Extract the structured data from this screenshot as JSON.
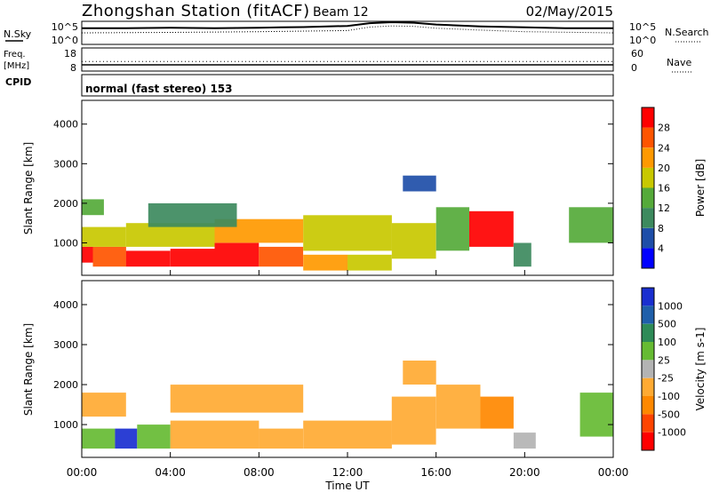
{
  "header": {
    "title": "Zhongshan Station (fitACF)",
    "beam": "Beam 12",
    "date": "02/May/2015"
  },
  "labels": {
    "nsky": "N.Sky",
    "nsearch": "N.Search",
    "freq": "Freq.",
    "mhz": "[MHz]",
    "nave": "Nave",
    "cpid": "CPID",
    "cpid_value": "normal (fast stereo) 153",
    "slant_range": "Slant Range [km]",
    "time_axis": "Time UT",
    "noise_ticks_left": [
      "10^5",
      "10^0"
    ],
    "noise_ticks_right": [
      "10^5",
      "10^0"
    ],
    "freq_ticks_left": [
      "18",
      "8"
    ],
    "nave_ticks_right": [
      "60",
      "0"
    ]
  },
  "colors": {
    "power_scale": [
      "#0000ff",
      "#1e4ea8",
      "#3d8a5e",
      "#55aa3a",
      "#c8c800",
      "#ff9900",
      "#ff5500",
      "#ff0000"
    ],
    "velocity_scale": [
      "#ff0000",
      "#ff4400",
      "#ff8800",
      "#ffaa33",
      "#b3b3b3",
      "#66bb33",
      "#2e8b57",
      "#1f5faa",
      "#1a2fd0"
    ]
  },
  "chart_data": [
    {
      "type": "heatmap",
      "name": "power",
      "xlabel": "Time UT",
      "ylabel": "Slant Range [km]",
      "xlim": [
        0,
        24
      ],
      "ylim": [
        180,
        4600
      ],
      "x_ticks": [
        "00:00",
        "04:00",
        "08:00",
        "12:00",
        "16:00",
        "20:00",
        "00:00"
      ],
      "y_ticks": [
        1000,
        2000,
        3000,
        4000
      ],
      "colorbar": {
        "label": "Power [dB]",
        "ticks": [
          "28",
          "24",
          "20",
          "16",
          "12",
          "8",
          "4"
        ],
        "range": [
          0,
          30
        ]
      },
      "cells": [
        [
          0,
          0.5,
          500,
          900,
          28
        ],
        [
          0.5,
          2,
          400,
          900,
          26
        ],
        [
          2,
          4,
          400,
          800,
          28
        ],
        [
          4,
          6,
          400,
          850,
          28
        ],
        [
          6,
          8,
          400,
          1000,
          27
        ],
        [
          8,
          10,
          400,
          900,
          26
        ],
        [
          10,
          12,
          300,
          700,
          20
        ],
        [
          12,
          14,
          300,
          700,
          16
        ],
        [
          0,
          2,
          900,
          1400,
          16
        ],
        [
          2,
          6,
          900,
          1500,
          18
        ],
        [
          6,
          10,
          1000,
          1600,
          20
        ],
        [
          10,
          14,
          800,
          1700,
          18
        ],
        [
          14,
          16,
          600,
          1500,
          16
        ],
        [
          16,
          17.5,
          800,
          1900,
          12
        ],
        [
          17.5,
          19.5,
          900,
          1800,
          28
        ],
        [
          19.5,
          20.3,
          400,
          1000,
          8
        ],
        [
          22,
          24,
          1000,
          1900,
          14
        ],
        [
          0,
          1,
          1700,
          2100,
          12
        ],
        [
          3,
          7,
          1400,
          2000,
          8
        ],
        [
          14.5,
          16,
          2300,
          2700,
          6
        ]
      ]
    },
    {
      "type": "heatmap",
      "name": "velocity",
      "xlabel": "Time UT",
      "ylabel": "Slant Range [km]",
      "xlim": [
        0,
        24
      ],
      "ylim": [
        180,
        4600
      ],
      "x_ticks": [
        "00:00",
        "04:00",
        "08:00",
        "12:00",
        "16:00",
        "20:00",
        "00:00"
      ],
      "y_ticks": [
        1000,
        2000,
        3000,
        4000
      ],
      "colorbar": {
        "label": "Velocity [m s-1]",
        "ticks": [
          "1000",
          "500",
          "100",
          "25",
          "-25",
          "-100",
          "-500",
          "-1000"
        ],
        "range": [
          -1000,
          1000
        ]
      },
      "cells": [
        [
          0,
          1.5,
          400,
          900,
          300
        ],
        [
          1.5,
          2.5,
          400,
          900,
          800
        ],
        [
          2.5,
          4,
          400,
          1000,
          300
        ],
        [
          4,
          8,
          400,
          1100,
          -150
        ],
        [
          8,
          10,
          400,
          900,
          -300
        ],
        [
          10,
          14,
          400,
          1100,
          -300
        ],
        [
          14,
          16,
          500,
          1700,
          -250
        ],
        [
          16,
          18,
          900,
          2000,
          -300
        ],
        [
          18,
          19.5,
          900,
          1700,
          -500
        ],
        [
          19.5,
          20.5,
          400,
          800,
          -80
        ],
        [
          22.5,
          24,
          700,
          1800,
          250
        ],
        [
          0,
          2,
          1200,
          1800,
          -150
        ],
        [
          4,
          10,
          1300,
          2000,
          -250
        ],
        [
          14.5,
          16,
          2000,
          2600,
          -200
        ]
      ]
    },
    {
      "type": "line",
      "name": "noise_sky",
      "x": [
        0,
        2,
        4,
        6,
        8,
        9,
        10,
        12,
        13,
        14,
        15,
        16,
        18,
        20,
        22,
        24
      ],
      "y": [
        0.7,
        0.7,
        0.72,
        0.7,
        0.72,
        0.74,
        0.75,
        0.8,
        0.92,
        0.96,
        0.94,
        0.86,
        0.78,
        0.74,
        0.7,
        0.7
      ]
    },
    {
      "type": "line",
      "name": "noise_search",
      "x": [
        0,
        4,
        8,
        12,
        13,
        14,
        15,
        16,
        18,
        20,
        24
      ],
      "y": [
        0.5,
        0.52,
        0.55,
        0.6,
        0.75,
        0.8,
        0.78,
        0.7,
        0.62,
        0.55,
        0.5
      ]
    },
    {
      "type": "line",
      "name": "frequency",
      "x": [
        0,
        24
      ],
      "y": [
        10.7,
        10.7
      ]
    },
    {
      "type": "line",
      "name": "nave",
      "x": [
        0,
        24
      ],
      "y": [
        25,
        25
      ]
    }
  ]
}
